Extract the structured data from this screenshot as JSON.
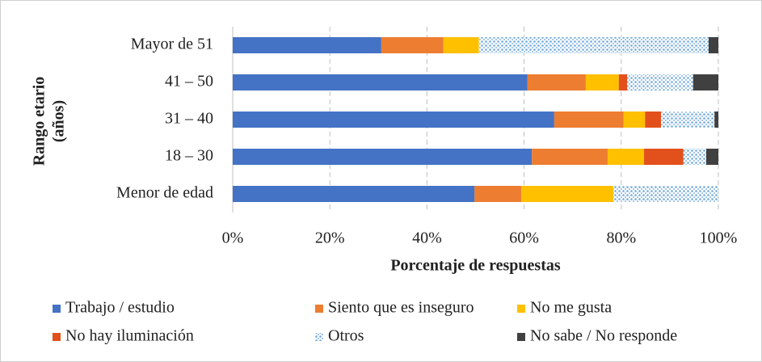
{
  "chart_data": {
    "type": "stacked_barh",
    "ylabel": [
      "Rango etario",
      "(años)"
    ],
    "xlabel": "Porcentaje de respuestas",
    "categories": [
      "Mayor de 51",
      "41 – 50",
      "31 – 40",
      "18 – 30",
      "Menor de edad"
    ],
    "series": [
      {
        "name": "Trabajo / estudio",
        "color": "#4472c4",
        "values": [
          30.6,
          60.7,
          66.2,
          61.6,
          49.8
        ]
      },
      {
        "name": "Siento que es inseguro",
        "color": "#ed7d31",
        "values": [
          12.8,
          12.0,
          14.3,
          15.6,
          9.6
        ]
      },
      {
        "name": "No me gusta",
        "color": "#ffc000",
        "values": [
          7.3,
          6.8,
          4.4,
          7.5,
          19.0
        ]
      },
      {
        "name": "No hay iluminación",
        "color": "#e2501c",
        "values": [
          0,
          1.7,
          3.3,
          8.1,
          0
        ]
      },
      {
        "name": "Otros",
        "color": "#9dc3e6",
        "pattern": "dots",
        "values": [
          47.3,
          13.6,
          11.0,
          4.7,
          21.6
        ]
      },
      {
        "name": "No sabe / No responde",
        "color": "#404040",
        "values": [
          2.0,
          5.2,
          0.8,
          2.5,
          0
        ]
      }
    ],
    "xlim": [
      0,
      100
    ],
    "xticks": [
      {
        "value": 0,
        "label": "0%"
      },
      {
        "value": 20,
        "label": "20%"
      },
      {
        "value": 40,
        "label": "40%"
      },
      {
        "value": 60,
        "label": "60%"
      },
      {
        "value": 80,
        "label": "80%"
      },
      {
        "value": 100,
        "label": "100%"
      }
    ],
    "grid": true,
    "legend": "bottom"
  }
}
